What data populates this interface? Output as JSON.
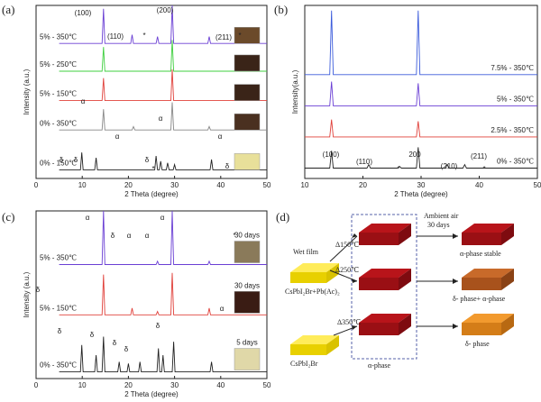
{
  "chart_data": [
    {
      "type": "line",
      "panel": "(a)",
      "xlabel": "2 Theta (degree)",
      "ylabel": "Intensity (a.u.)",
      "xlim": [
        0,
        50
      ],
      "xticks": [
        0,
        10,
        20,
        30,
        40,
        50
      ],
      "ylim": [
        0,
        100
      ],
      "series": [
        {
          "name": "5% - 350℃",
          "color": "#6a3fd4",
          "x": [
            5,
            14.3,
            14.6,
            14.9,
            20.5,
            20.8,
            21.1,
            26,
            26.3,
            26.6,
            29.2,
            29.5,
            29.8,
            37.2,
            37.5,
            37.8,
            50
          ],
          "values": [
            78,
            78,
            98,
            78,
            78,
            83,
            78,
            78,
            82,
            78,
            78,
            100,
            78,
            78,
            82,
            78,
            78
          ]
        },
        {
          "name": "5% - 250℃",
          "color": "#3fcf3f",
          "x": [
            5,
            14.3,
            14.6,
            14.9,
            29.2,
            29.5,
            29.8,
            50
          ],
          "values": [
            62,
            62,
            76,
            62,
            62,
            80,
            62,
            62
          ]
        },
        {
          "name": "5% - 150℃",
          "color": "#e0403a",
          "x": [
            5,
            14.3,
            14.6,
            14.9,
            29.2,
            29.5,
            29.8,
            50
          ],
          "values": [
            45,
            45,
            58,
            45,
            45,
            63,
            45,
            45
          ]
        },
        {
          "name": "0% - 350℃",
          "color": "#888888",
          "x": [
            5,
            14.3,
            14.6,
            14.9,
            20.8,
            21.1,
            21.4,
            29.2,
            29.5,
            29.8,
            37.2,
            37.5,
            37.8,
            50
          ],
          "values": [
            28,
            28,
            40,
            28,
            28,
            30,
            28,
            28,
            44,
            28,
            28,
            30,
            28,
            28
          ]
        },
        {
          "name": "0% - 150℃",
          "color": "#222222",
          "x": [
            5,
            9.6,
            9.9,
            10.2,
            12.7,
            13,
            13.3,
            25.7,
            26,
            26.3,
            26.7,
            27,
            27.3,
            28.2,
            28.5,
            28.8,
            29.7,
            30,
            30.3,
            37.7,
            38,
            38.3,
            50
          ],
          "values": [
            5,
            5,
            15,
            5,
            5,
            12,
            5,
            5,
            13,
            5,
            5,
            10,
            5,
            5,
            9,
            5,
            5,
            8,
            5,
            5,
            11,
            5,
            5
          ]
        }
      ],
      "annotations": [
        "(100)",
        "(110)",
        "*",
        "(200)",
        "(211)",
        "*",
        "α",
        "α",
        "α",
        "α",
        "δ",
        "δ",
        "δ",
        "δ",
        "*"
      ]
    },
    {
      "type": "line",
      "panel": "(b)",
      "xlabel": "2 Theta (degree)",
      "ylabel": "Intensity(a.u.)",
      "xlim": [
        10,
        50
      ],
      "xticks": [
        10,
        20,
        30,
        40,
        50
      ],
      "ylim": [
        0,
        100
      ],
      "series": [
        {
          "name": "7.5% - 350℃",
          "color": "#3b5bdb",
          "x": [
            10,
            14.3,
            14.6,
            14.9,
            29.2,
            29.5,
            29.8,
            50
          ],
          "values": [
            60,
            60,
            97,
            60,
            60,
            97,
            60,
            60
          ]
        },
        {
          "name": "5% - 350℃",
          "color": "#6a3fd4",
          "x": [
            10,
            14.3,
            14.6,
            14.9,
            29.2,
            29.5,
            29.8,
            50
          ],
          "values": [
            42,
            42,
            56,
            42,
            42,
            55,
            42,
            42
          ]
        },
        {
          "name": "2.5% - 350℃",
          "color": "#e0403a",
          "x": [
            10,
            14.3,
            14.6,
            14.9,
            29.2,
            29.5,
            29.8,
            50
          ],
          "values": [
            24,
            24,
            34,
            24,
            24,
            33,
            24,
            24
          ]
        },
        {
          "name": "0% - 350℃",
          "color": "#222222",
          "x": [
            10,
            14.3,
            14.6,
            14.9,
            20.7,
            21,
            21.3,
            26,
            26.3,
            26.6,
            29.2,
            29.5,
            29.8,
            34.2,
            34.5,
            34.8,
            37.2,
            37.5,
            37.8,
            50
          ],
          "values": [
            6,
            6,
            16,
            6,
            6,
            8,
            6,
            6,
            7,
            6,
            6,
            18,
            6,
            6,
            8,
            6,
            6,
            8,
            6,
            6
          ]
        }
      ],
      "annotations": [
        "(100)",
        "(110)",
        "*",
        "200",
        "(210)",
        "(211)",
        "*"
      ]
    },
    {
      "type": "line",
      "panel": "(c)",
      "xlabel": "2 Theta (degree)",
      "ylabel": "Intensity (a.u.)",
      "xlim": [
        0,
        50
      ],
      "xticks": [
        0,
        10,
        20,
        30,
        40,
        50
      ],
      "ylim": [
        0,
        100
      ],
      "series": [
        {
          "name": "5% - 350℃",
          "color": "#6a3fd4",
          "x": [
            5,
            14.3,
            14.6,
            14.9,
            26,
            26.3,
            26.6,
            29.2,
            29.5,
            29.8,
            37.2,
            37.5,
            37.8,
            50
          ],
          "values": [
            68,
            68,
            100,
            68,
            68,
            70,
            68,
            68,
            100,
            68,
            68,
            70,
            68,
            68
          ]
        },
        {
          "name": "5% - 150℃",
          "color": "#e0403a",
          "x": [
            5,
            14.3,
            14.6,
            14.9,
            20.5,
            20.8,
            21.1,
            26,
            26.3,
            26.6,
            29.2,
            29.5,
            29.8,
            37.2,
            37.5,
            37.8,
            50
          ],
          "values": [
            38,
            38,
            62,
            38,
            38,
            42,
            38,
            38,
            40,
            38,
            38,
            63,
            38,
            38,
            42,
            38,
            38
          ]
        },
        {
          "name": "0% - 350℃",
          "color": "#222222",
          "x": [
            5,
            9.6,
            9.9,
            10.2,
            12.7,
            13,
            13.3,
            14.3,
            14.6,
            14.9,
            17.7,
            18,
            18.3,
            19.7,
            20,
            20.3,
            22.2,
            22.5,
            22.8,
            26.2,
            26.5,
            26.8,
            27.2,
            27.5,
            27.8,
            29.5,
            29.8,
            30.1,
            37.7,
            38,
            38.3,
            50
          ],
          "values": [
            4,
            4,
            20,
            4,
            4,
            14,
            4,
            4,
            25,
            4,
            4,
            10,
            4,
            4,
            9,
            4,
            4,
            10,
            4,
            4,
            18,
            4,
            4,
            14,
            4,
            4,
            22,
            4,
            4,
            10,
            4,
            4
          ]
        }
      ],
      "insets": [
        "30 days",
        "30 days",
        "5 days"
      ],
      "annotations": [
        "α",
        "α",
        "δ",
        "δ",
        "α",
        "α",
        "*",
        "α",
        "δ",
        "δ",
        "δ",
        "δ",
        "δ"
      ]
    }
  ],
  "diagram": {
    "panel": "(d)",
    "wet_film": "Wet film",
    "precursor_1": "CsPbI₂Br+Pb(Ac)₂",
    "precursor_2": "CsPbI₂Br",
    "anneal": [
      "Δ150℃",
      "Δ250℃",
      "Δ350℃"
    ],
    "ambient": "Ambient air",
    "days": "30 days",
    "middle": "α-phase",
    "results": [
      "α-phase stable",
      "δ- phase+ α-phase",
      "δ- phase"
    ]
  }
}
